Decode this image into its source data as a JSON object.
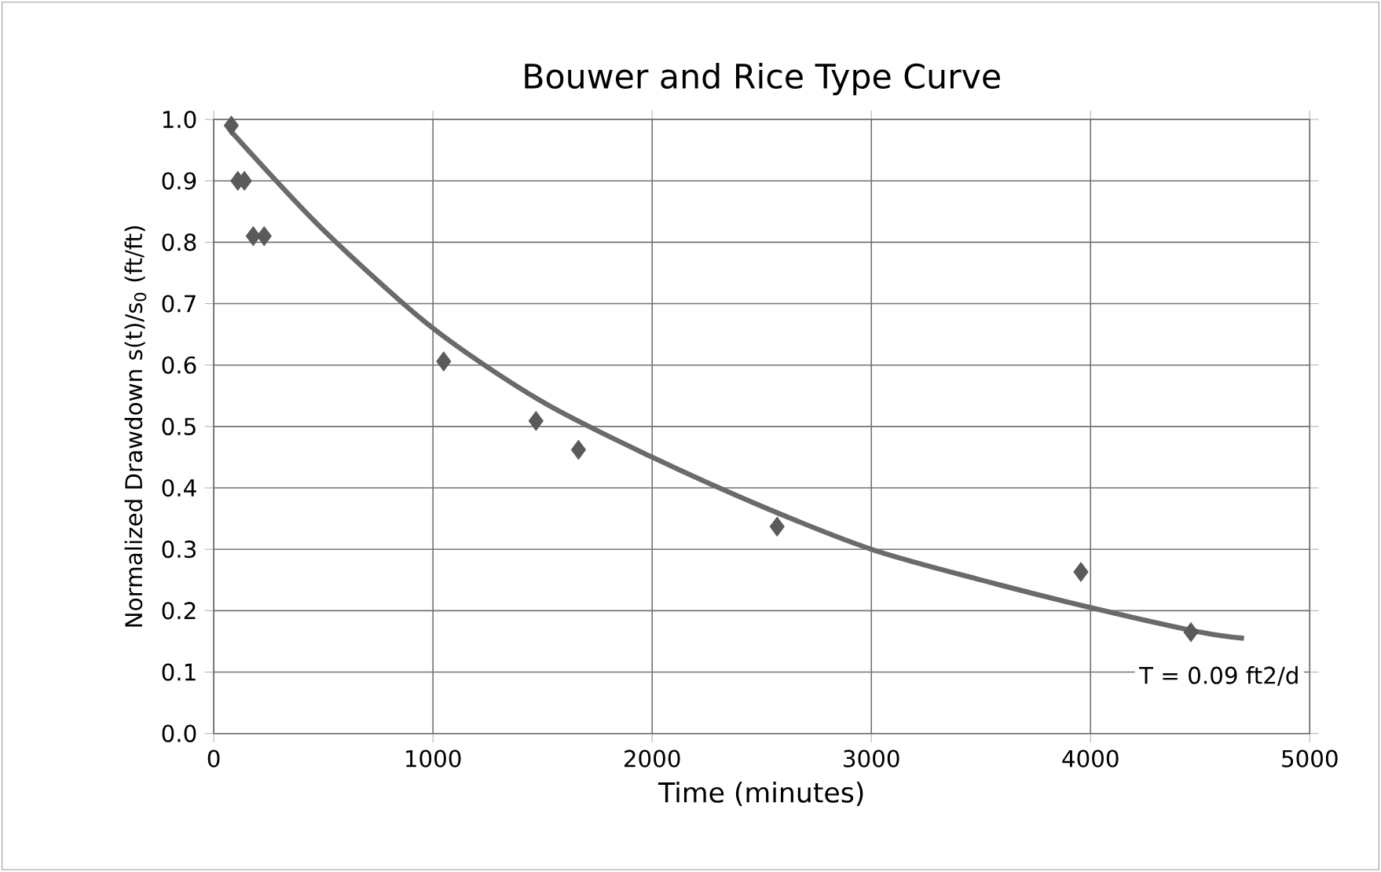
{
  "chart_data": {
    "type": "scatter",
    "title": "Bouwer and Rice Type Curve",
    "xlabel": "Time (minutes)",
    "ylabel": "Normalized Drawdown s(t)/s$_{0}$ (ft/ft)",
    "series": [
      {
        "color": "#5a5a5a",
        "marker": "diamond",
        "x": [
          80,
          110,
          140,
          180,
          230,
          1049,
          1470,
          1664,
          2570,
          3956,
          4458
        ],
        "values": [
          0.99,
          0.9,
          0.9,
          0.81,
          0.81,
          0.606,
          0.509,
          0.462,
          0.337,
          0.263,
          0.165
        ]
      },
      {
        "type": "line",
        "color": "#6a6a6a",
        "marker": "none",
        "x": [
          80,
          500,
          1000,
          1500,
          2000,
          2500,
          3000,
          3500,
          4000,
          4500,
          4700
        ],
        "values": [
          0.98,
          0.82,
          0.66,
          0.54,
          0.45,
          0.37,
          0.3,
          0.25,
          0.205,
          0.165,
          0.155
        ]
      }
    ],
    "xlim": [
      0,
      5000
    ],
    "xticks": [
      0,
      1000,
      2000,
      3000,
      4000,
      5000
    ],
    "ylim": [
      0,
      1
    ],
    "yticks": [
      {
        "value": 0,
        "label": "0.0"
      },
      {
        "value": 0.1,
        "label": "0.1"
      },
      {
        "value": 0.2,
        "label": "0.2"
      },
      {
        "value": 0.3,
        "label": "0.3"
      },
      {
        "value": 0.4,
        "label": "0.4"
      },
      {
        "value": 0.5,
        "label": "0.5"
      },
      {
        "value": 0.6,
        "label": "0.6"
      },
      {
        "value": 0.7,
        "label": "0.7"
      },
      {
        "value": 0.8,
        "label": "0.8"
      },
      {
        "value": 0.9,
        "label": "0.9"
      },
      {
        "value": 1,
        "label": "1.0"
      }
    ],
    "grid": true,
    "annotations": [
      "T = 0.09 ft2/d"
    ]
  }
}
